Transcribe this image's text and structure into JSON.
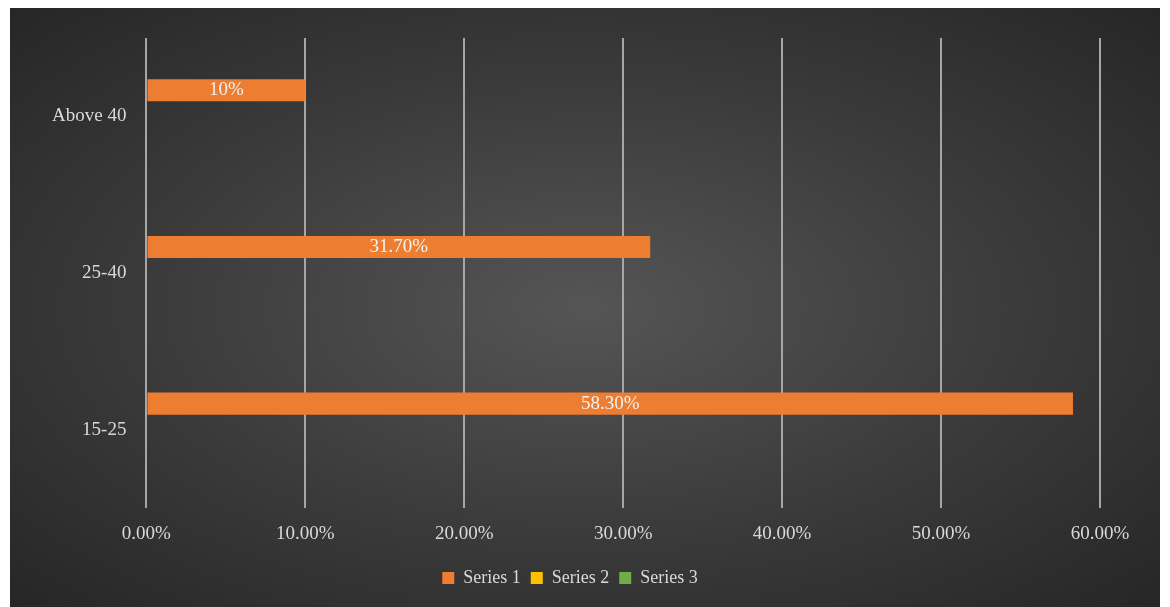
{
  "chart_data": {
    "type": "bar",
    "orientation": "horizontal",
    "categories": [
      "Above 40",
      "25-40",
      "15-25"
    ],
    "series": [
      {
        "name": "Series 1",
        "color": "#ed7d31",
        "values": [
          10,
          31.7,
          58.3
        ],
        "value_labels": [
          "10%",
          "31.70%",
          "58.30%"
        ]
      },
      {
        "name": "Series 2",
        "color": "#ffc000",
        "values": [
          null,
          null,
          null
        ]
      },
      {
        "name": "Series 3",
        "color": "#70ad47",
        "values": [
          null,
          null,
          null
        ]
      }
    ],
    "xlim": [
      0,
      60
    ],
    "xticks": [
      {
        "value": 0,
        "label": "0.00%"
      },
      {
        "value": 10,
        "label": "10.00%"
      },
      {
        "value": 20,
        "label": "20.00%"
      },
      {
        "value": 30,
        "label": "30.00%"
      },
      {
        "value": 40,
        "label": "40.00%"
      },
      {
        "value": 50,
        "label": "50.00%"
      },
      {
        "value": 60,
        "label": "60.00%"
      }
    ],
    "grid": "x",
    "legend": "bottom"
  }
}
